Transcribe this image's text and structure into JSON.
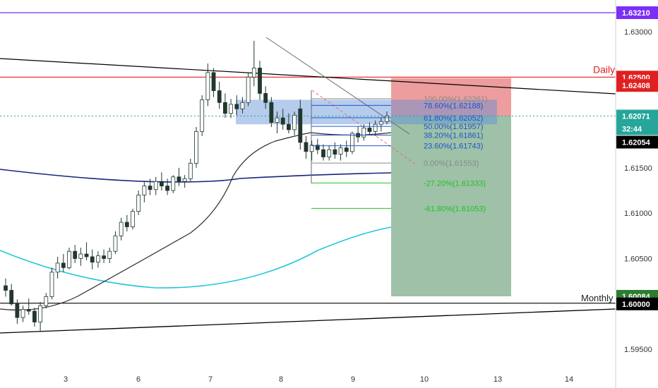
{
  "chart_data": {
    "type": "candlestick",
    "symbol": "",
    "y_range": [
      1.5925,
      1.6345
    ],
    "x_ticks": [
      "3",
      "6",
      "7",
      "8",
      "9",
      "10",
      "13",
      "14"
    ],
    "price_ticks": [
      "1.63000",
      "1.62500",
      "1.62000",
      "1.61500",
      "1.61000",
      "1.60500",
      "1.60000",
      "1.59500"
    ],
    "colors": {
      "up": "#26a69a",
      "down": "#ef5350",
      "candle": "#22372d",
      "accent": "#7b2ff7",
      "daily": "#e02020",
      "sma": "#1a237e",
      "ema": "#26c6da",
      "blue_zone": "#5b8ed6",
      "profit": "#6aa07a",
      "loss": "#e57373"
    },
    "horizontal_levels": [
      {
        "name": "top-level",
        "price": 1.6321,
        "label": "1.63210",
        "color": "#7b2ff7"
      },
      {
        "name": "daily-level",
        "price": 1.62408,
        "label": "1.62408",
        "text": "Daily",
        "color": "#e02020"
      },
      {
        "name": "monthly-level",
        "price": 1.6,
        "label": "1.60000",
        "text": "Monthly",
        "color": "#000000"
      }
    ],
    "price_labels": [
      {
        "price": 1.625,
        "text": "1.62500",
        "bg": "#e02020",
        "fg": "#ffffff"
      },
      {
        "price": 1.62408,
        "text": "1.62408",
        "bg": "#e02020",
        "fg": "#ffffff"
      },
      {
        "price": 1.62071,
        "text": "1.62071",
        "bg": "#26a69a",
        "fg": "#ffffff"
      },
      {
        "price": 1.62015,
        "text": "32:44",
        "bg": "#26a69a",
        "fg": "#ffffff"
      },
      {
        "price": 1.62054,
        "text": "1.62054",
        "bg": "#000000",
        "fg": "#ffffff"
      },
      {
        "price": 1.60084,
        "text": "1.60084",
        "bg": "#2e7d32",
        "fg": "#ffffff"
      }
    ],
    "fibonacci": [
      {
        "ratio": "100.00%",
        "price": 1.62261,
        "label": "100.00%(1.62261)",
        "color": "#8a8a8a"
      },
      {
        "ratio": "78.60%",
        "price": 1.62188,
        "label": "78.60%(1.62188)",
        "color": "#1e56c8"
      },
      {
        "ratio": "61.80%",
        "price": 1.62052,
        "label": "61.80%(1.62052)",
        "color": "#1e56c8"
      },
      {
        "ratio": "50.00%",
        "price": 1.61957,
        "label": "50.00%(1.61957)",
        "color": "#1e56c8"
      },
      {
        "ratio": "38.20%",
        "price": 1.61861,
        "label": "38.20%(1.61861)",
        "color": "#1e56c8"
      },
      {
        "ratio": "23.60%",
        "price": 1.61743,
        "label": "23.60%(1.61743)",
        "color": "#1e56c8"
      },
      {
        "ratio": "0.00%",
        "price": 1.61553,
        "label": "0.00%(1.61553)",
        "color": "#8a8a8a"
      },
      {
        "ratio": "-27.20%",
        "price": 1.61333,
        "label": "-27.20%(1.61333)",
        "color": "#22c222"
      },
      {
        "ratio": "-61.80%",
        "price": 1.61053,
        "label": "-61.80%(1.61053)",
        "color": "#22c222"
      }
    ],
    "candles": [
      [
        1.602,
        1.6028,
        1.6008,
        1.6015
      ],
      [
        1.6015,
        1.6022,
        1.5998,
        1.6
      ],
      [
        1.6,
        1.6005,
        1.5978,
        1.5985
      ],
      [
        1.5985,
        1.5998,
        1.598,
        1.5994
      ],
      [
        1.5994,
        1.6006,
        1.5988,
        1.5992
      ],
      [
        1.5992,
        1.5996,
        1.5975,
        1.598
      ],
      [
        1.598,
        1.6002,
        1.597,
        1.5998
      ],
      [
        1.5998,
        1.6012,
        1.5995,
        1.6008
      ],
      [
        1.6008,
        1.604,
        1.6005,
        1.6035
      ],
      [
        1.6035,
        1.6052,
        1.6028,
        1.6045
      ],
      [
        1.6045,
        1.6055,
        1.6035,
        1.604
      ],
      [
        1.604,
        1.6062,
        1.6038,
        1.6058
      ],
      [
        1.6058,
        1.6065,
        1.6045,
        1.605
      ],
      [
        1.605,
        1.6062,
        1.6042,
        1.6055
      ],
      [
        1.6055,
        1.6068,
        1.6048,
        1.6052
      ],
      [
        1.6052,
        1.606,
        1.6038,
        1.6046
      ],
      [
        1.6046,
        1.6058,
        1.604,
        1.6053
      ],
      [
        1.6053,
        1.606,
        1.6045,
        1.605
      ],
      [
        1.605,
        1.6062,
        1.6045,
        1.6058
      ],
      [
        1.6058,
        1.608,
        1.6055,
        1.6075
      ],
      [
        1.6075,
        1.6095,
        1.607,
        1.609
      ],
      [
        1.609,
        1.6098,
        1.608,
        1.6085
      ],
      [
        1.6085,
        1.6105,
        1.6082,
        1.6102
      ],
      [
        1.6102,
        1.6125,
        1.6098,
        1.612
      ],
      [
        1.612,
        1.6135,
        1.6112,
        1.613
      ],
      [
        1.613,
        1.6138,
        1.612,
        1.6126
      ],
      [
        1.6126,
        1.614,
        1.612,
        1.6135
      ],
      [
        1.6135,
        1.6145,
        1.6125,
        1.613
      ],
      [
        1.613,
        1.6138,
        1.612,
        1.6125
      ],
      [
        1.6125,
        1.6142,
        1.6122,
        1.614
      ],
      [
        1.614,
        1.615,
        1.613,
        1.6135
      ],
      [
        1.6135,
        1.6142,
        1.6128,
        1.6138
      ],
      [
        1.6138,
        1.616,
        1.6135,
        1.6155
      ],
      [
        1.6155,
        1.6195,
        1.615,
        1.619
      ],
      [
        1.619,
        1.623,
        1.6185,
        1.6225
      ],
      [
        1.6225,
        1.6265,
        1.6218,
        1.6255
      ],
      [
        1.6255,
        1.626,
        1.6228,
        1.6235
      ],
      [
        1.6235,
        1.6245,
        1.6215,
        1.6222
      ],
      [
        1.6222,
        1.6232,
        1.6205,
        1.621
      ],
      [
        1.621,
        1.6226,
        1.6205,
        1.622
      ],
      [
        1.622,
        1.623,
        1.6208,
        1.6215
      ],
      [
        1.6215,
        1.6228,
        1.621,
        1.6222
      ],
      [
        1.6222,
        1.6255,
        1.6218,
        1.625
      ],
      [
        1.625,
        1.629,
        1.624,
        1.626
      ],
      [
        1.626,
        1.6268,
        1.6225,
        1.6232
      ],
      [
        1.6232,
        1.624,
        1.6215,
        1.6222
      ],
      [
        1.6222,
        1.6228,
        1.6195,
        1.62
      ],
      [
        1.62,
        1.6212,
        1.6188,
        1.6205
      ],
      [
        1.6205,
        1.6215,
        1.6192,
        1.6198
      ],
      [
        1.6198,
        1.621,
        1.6188,
        1.6192
      ],
      [
        1.6192,
        1.6212,
        1.6186,
        1.6208
      ],
      [
        1.6215,
        1.6225,
        1.617,
        1.6178
      ],
      [
        1.6178,
        1.6185,
        1.616,
        1.6168
      ],
      [
        1.6168,
        1.618,
        1.6158,
        1.6175
      ],
      [
        1.6175,
        1.6182,
        1.6165,
        1.617
      ],
      [
        1.617,
        1.6176,
        1.6158,
        1.6162
      ],
      [
        1.6162,
        1.6175,
        1.6158,
        1.617
      ],
      [
        1.617,
        1.6178,
        1.616,
        1.6165
      ],
      [
        1.6165,
        1.6176,
        1.6158,
        1.6172
      ],
      [
        1.6172,
        1.618,
        1.6162,
        1.6168
      ],
      [
        1.6168,
        1.619,
        1.6165,
        1.6188
      ],
      [
        1.6188,
        1.6196,
        1.6178,
        1.6184
      ],
      [
        1.6184,
        1.6198,
        1.618,
        1.6194
      ],
      [
        1.6194,
        1.62,
        1.6186,
        1.619
      ],
      [
        1.619,
        1.6202,
        1.6185,
        1.6198
      ],
      [
        1.6198,
        1.6205,
        1.619,
        1.6201
      ],
      [
        1.6201,
        1.6212,
        1.6198,
        1.6207
      ]
    ]
  }
}
